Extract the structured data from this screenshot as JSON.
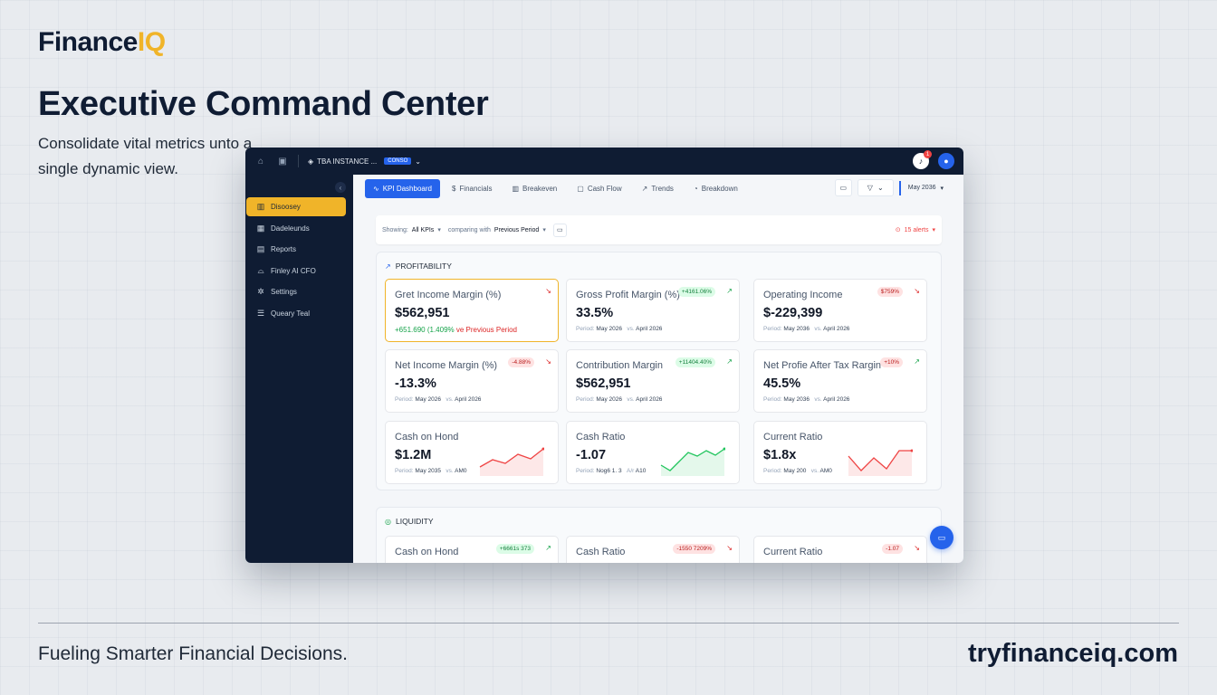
{
  "brand": {
    "name_main": "Finance",
    "name_accent": "IQ"
  },
  "hero": {
    "headline": "Executive Command Center",
    "subhead": "Consolidate vital metrics unto a single dynamic view."
  },
  "footer": {
    "tagline": "Fueling Smarter Financial Decisions.",
    "url": "tryfinanceiq.com"
  },
  "topbar": {
    "instance": "TBA INSTANCE ...",
    "instance_badge": "CONSO",
    "notification_count": "1",
    "icons": [
      "home-icon",
      "lock-icon",
      "stack-icon",
      "bell-icon",
      "user-icon"
    ]
  },
  "sidebar": {
    "collapse_glyph": "‹",
    "items": [
      {
        "label": "Disoosey",
        "icon": "bar-chart-icon",
        "active": true
      },
      {
        "label": "Dadeleunds",
        "icon": "grid-icon",
        "active": false
      },
      {
        "label": "Reports",
        "icon": "file-icon",
        "active": false
      },
      {
        "label": "Finley AI CFO",
        "icon": "robot-icon",
        "active": false
      },
      {
        "label": "Settings",
        "icon": "gear-icon",
        "active": false
      },
      {
        "label": "Queary Teal",
        "icon": "database-icon",
        "active": false
      }
    ]
  },
  "tabs": [
    {
      "label": "KPI Dashboard",
      "icon": "pulse-icon",
      "active": true
    },
    {
      "label": "Financials",
      "icon": "dollar-icon",
      "active": false
    },
    {
      "label": "Breakeven",
      "icon": "bar-chart-icon",
      "active": false
    },
    {
      "label": "Cash Flow",
      "icon": "wallet-icon",
      "active": false
    },
    {
      "label": "Trends",
      "icon": "trend-icon",
      "active": false
    },
    {
      "label": "Breakdown",
      "icon": "pie-icon",
      "active": false
    }
  ],
  "toolbar": {
    "period": "May 2036"
  },
  "filter": {
    "showing_label": "Showing:",
    "showing_value": "All KPIs",
    "comparing_label": "comparing with",
    "comparing_value": "Previous Period",
    "alerts": "15 alerts"
  },
  "sections": {
    "profitability": {
      "title": "PROFITABILITY",
      "cards": [
        {
          "label": "Gret Income Margin (%)",
          "value": "$562,951",
          "delta": "+651.690",
          "delta_pct": "(1.409%",
          "delta_suffix": "ve Previous Period",
          "trend": "down"
        },
        {
          "label": "Gross Profit Margin (%)",
          "value": "33.5%",
          "chip": "+4161.06%",
          "chip_tone": "g",
          "trend": "up",
          "period_label": "Period:",
          "period": "May 2026",
          "vs_label": "vs.",
          "vs": "April 2026"
        },
        {
          "label": "Operating Income",
          "value": "$-229,399",
          "chip": "$759%",
          "chip_tone": "r",
          "trend": "down",
          "period_label": "Period:",
          "period": "May 2036",
          "vs_label": "vs.",
          "vs": "April 2026"
        },
        {
          "label": "Net Income Margin (%)",
          "value": "-13.3%",
          "chip": "-4.88%",
          "chip_tone": "r",
          "trend": "down",
          "period_label": "Period:",
          "period": "May 2026",
          "vs_label": "vs.",
          "vs": "April 2026"
        },
        {
          "label": "Contribution Margin",
          "value": "$562,951",
          "chip": "+11404.40%",
          "chip_tone": "g",
          "trend": "up",
          "period_label": "Period:",
          "period": "May 2026",
          "vs_label": "vs.",
          "vs": "April 2026"
        },
        {
          "label": "Net Profie After Tax Rargin",
          "value": "45.5%",
          "chip": "+10%",
          "chip_tone": "r",
          "trend": "up",
          "period_label": "Period:",
          "period": "May 2036",
          "vs_label": "vs.",
          "vs": "April 2026"
        },
        {
          "label": "Cash on Hond",
          "value": "$1.2M",
          "period_label": "Period:",
          "period": "May 2035",
          "vs_label": "vs.",
          "vs": "AM0",
          "spark": [
            22,
            14,
            18,
            8,
            13,
            2
          ],
          "spark_color": "#ef4444"
        },
        {
          "label": "Cash Ratio",
          "value": "-1.07",
          "period_label": "Period:",
          "period": "Nog6 1. 3",
          "vs_label": "A/r",
          "vs": "A10",
          "spark": [
            20,
            26,
            16,
            6,
            10,
            4,
            9,
            2
          ],
          "spark_color": "#22c55e"
        },
        {
          "label": "Current Ratio",
          "value": "$1.8x",
          "period_label": "Period:",
          "period": "May 200",
          "vs_label": "vs.",
          "vs": "AM0",
          "spark": [
            10,
            26,
            12,
            24,
            4,
            4
          ],
          "spark_color": "#ef4444"
        }
      ]
    },
    "liquidity": {
      "title": "LIQUIDITY",
      "cards": [
        {
          "label": "Cash on Hond",
          "chip": "+6661s 373",
          "chip_tone": "g",
          "trend": "up"
        },
        {
          "label": "Cash Ratio",
          "chip": "-1550 7209%",
          "chip_tone": "r",
          "trend": "down"
        },
        {
          "label": "Current Ratio",
          "chip": "-1.07",
          "chip_tone": "r",
          "trend": "down"
        }
      ]
    }
  }
}
